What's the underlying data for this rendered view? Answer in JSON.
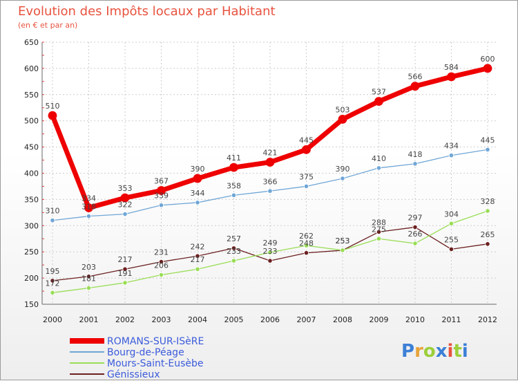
{
  "chart_data": {
    "type": "line",
    "title": "Evolution des Impôts locaux par Habitant",
    "subtitle": "(en € et par an)",
    "xlabel": "",
    "ylabel": "",
    "categories": [
      "2000",
      "2001",
      "2002",
      "2003",
      "2004",
      "2005",
      "2006",
      "2007",
      "2008",
      "2009",
      "2010",
      "2011",
      "2012"
    ],
    "ylim": [
      150,
      650
    ],
    "yticks": [
      "650",
      "600",
      "550",
      "500",
      "450",
      "400",
      "350",
      "300",
      "250",
      "200",
      "150"
    ],
    "grid": true,
    "legend_position": "bottom-left",
    "series": [
      {
        "name": "ROMANS-SUR-ISèRE",
        "color": "#ee0000",
        "values": [
          510,
          334,
          353,
          367,
          390,
          411,
          421,
          445,
          503,
          537,
          566,
          584,
          600
        ]
      },
      {
        "name": "Bourg-de-Péage",
        "color": "#6fa6d6",
        "values": [
          310,
          318,
          322,
          339,
          344,
          358,
          366,
          375,
          390,
          410,
          418,
          434,
          445
        ]
      },
      {
        "name": "Mours-Saint-Eusèbe",
        "color": "#99dd55",
        "values": [
          172,
          181,
          191,
          206,
          217,
          233,
          249,
          262,
          253,
          275,
          266,
          304,
          328
        ]
      },
      {
        "name": "Génissieux",
        "color": "#6b1f1f",
        "values": [
          195,
          203,
          217,
          231,
          242,
          257,
          233,
          248,
          253,
          288,
          297,
          255,
          265
        ]
      }
    ]
  },
  "brand": {
    "letters": [
      "P",
      "r",
      "o",
      "x",
      "i",
      "t",
      "i"
    ],
    "colors": [
      "#3b7fd6",
      "#e8a23a",
      "#9ccf3a",
      "#3b7fd6",
      "#e8533f",
      "#9ccf3a",
      "#3b7fd6"
    ]
  }
}
